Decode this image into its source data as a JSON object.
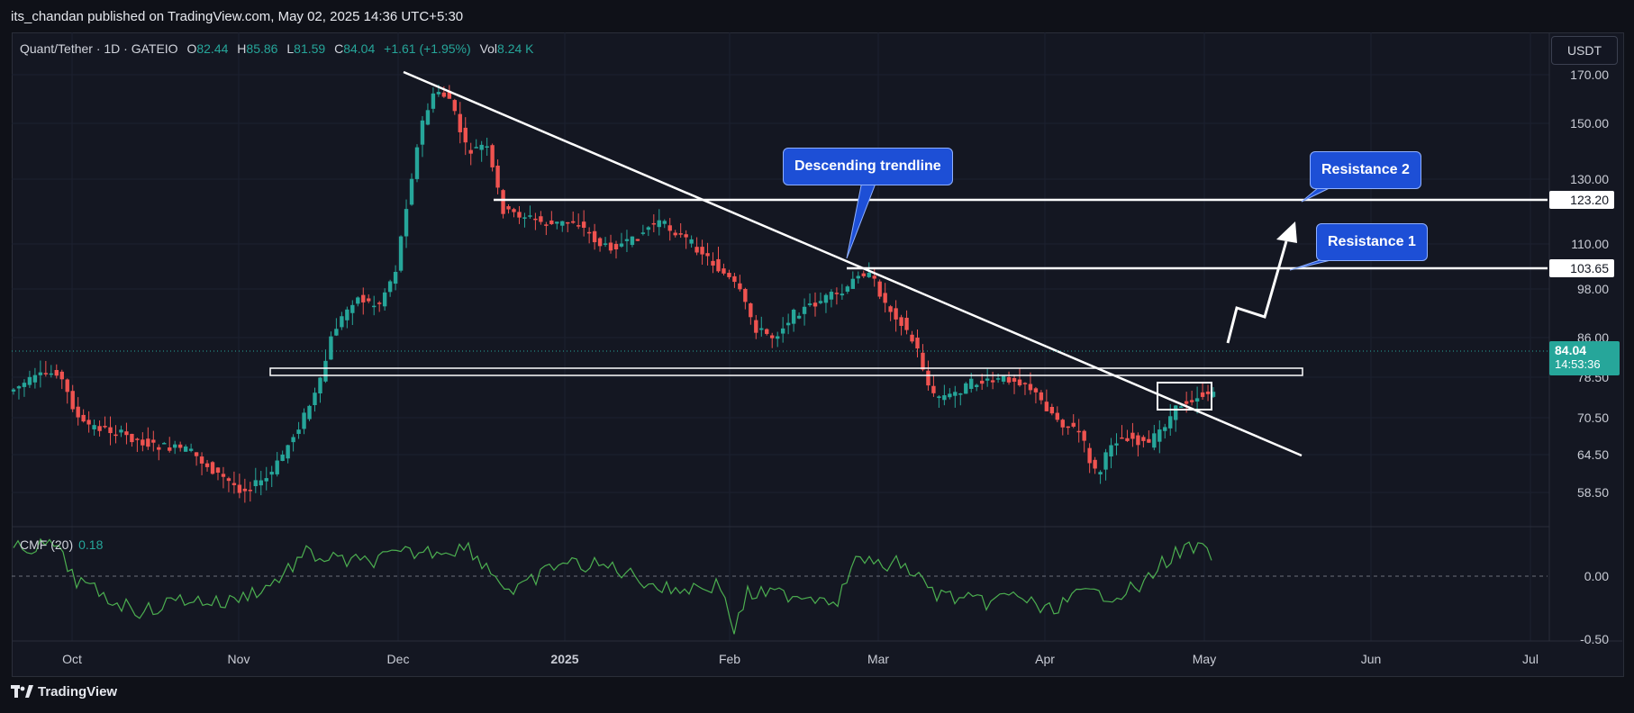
{
  "header": {
    "publisher_line": "its_chandan published on TradingView.com, May 02, 2025 14:36 UTC+5:30"
  },
  "legend": {
    "symbol": "Quant/Tether · 1D · GATEIO",
    "open_label": "O",
    "open": "82.44",
    "high_label": "H",
    "high": "85.86",
    "low_label": "L",
    "low": "81.59",
    "close_label": "C",
    "close": "84.04",
    "change": "+1.61 (+1.95%)",
    "vol_label": "Vol",
    "volume": "8.24 K"
  },
  "currency_button": "USDT",
  "indicator": {
    "label": "CMF (20)",
    "value": "0.18"
  },
  "footer": {
    "brand": "TradingView"
  },
  "annotations": {
    "trendline_label": "Descending trendline",
    "resistance1_label": "Resistance 1",
    "resistance2_label": "Resistance 2"
  },
  "price_tags": {
    "resistance2": "123.20",
    "resistance1": "103.65",
    "last_price": "84.04",
    "countdown": "14:53:36"
  },
  "colors": {
    "up": "#26a69a",
    "down": "#ef5350",
    "cmf": "#4caf50",
    "callout": "#1d4fd6",
    "background": "#141722"
  },
  "chart_data": {
    "type": "candlestick",
    "price_axis_ticks": [
      "170.00",
      "150.00",
      "130.00",
      "110.00",
      "98.00",
      "86.00",
      "78.50",
      "70.50",
      "64.50",
      "58.50"
    ],
    "cmf_axis_ticks": [
      "0.00",
      "-0.50"
    ],
    "x_ticks": [
      "Oct",
      "Nov",
      "Dec",
      "2025",
      "Feb",
      "Mar",
      "Apr",
      "May",
      "Jun",
      "Jul"
    ],
    "resistance_levels": [
      123.2,
      103.65
    ],
    "last_price": 84.04
  }
}
